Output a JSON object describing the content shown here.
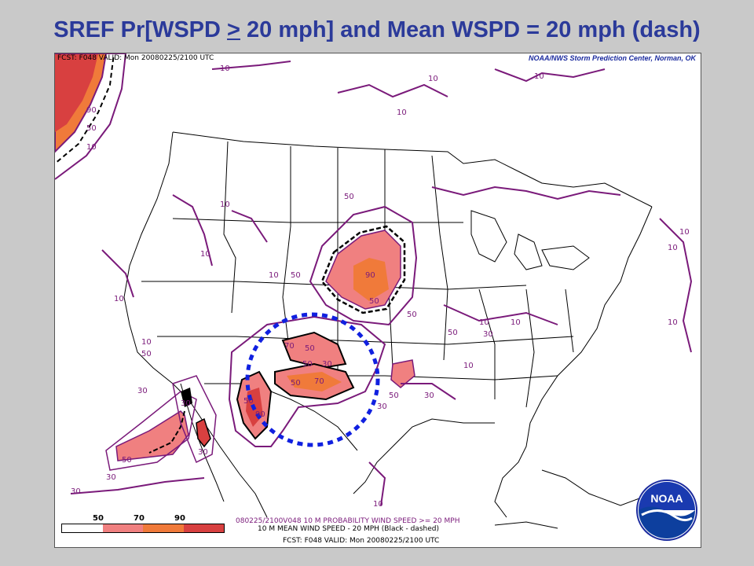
{
  "title": {
    "prefix": "SREF Pr[WSPD ",
    "ge": ">",
    "suffix": " 20 mph] and Mean WSPD = 20 mph (dash)"
  },
  "map": {
    "header_left": "FCST: F048  VALID: Mon  20080225/2100 UTC",
    "header_right": "NOAA/NWS Storm Prediction Center, Norman, OK",
    "contour_labels": [
      "10",
      "30",
      "50",
      "70",
      "90"
    ],
    "legend": {
      "ticks": [
        "50",
        "70",
        "90"
      ],
      "colors": [
        "#ffffff",
        "#f08080",
        "#f07a3a",
        "#d84040"
      ]
    },
    "footer_line1": "080225/2100V048 10 M PROBABILITY WIND SPEED >= 20 MPH",
    "footer_line2": "10 M MEAN WIND SPEED - 20 MPH (Black - dashed)",
    "footer_line3": "FCST: F048  VALID: Mon  20080225/2100 UTC",
    "logo_text": "NOAA"
  },
  "colors": {
    "title": "#2b3a9a",
    "contour": "#7a1a7a",
    "prob_low": "#f08080",
    "prob_mid": "#f07a3a",
    "prob_high": "#d84040",
    "highlight_circle": "#1020e0"
  }
}
